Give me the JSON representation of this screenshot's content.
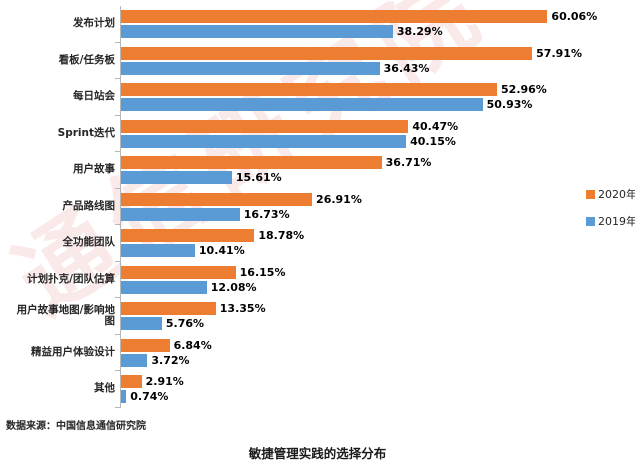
{
  "title": "敏捷管理实践的选择分布",
  "source": "数据来源：中国信息通信研究院",
  "watermark": "通信研究院",
  "legend": [
    {
      "label": "2020年",
      "color": "#ED7D31"
    },
    {
      "label": "2019年",
      "color": "#5B9BD5"
    }
  ],
  "chart_data": {
    "type": "bar",
    "orientation": "horizontal",
    "title": "敏捷管理实践的选择分布",
    "xlabel": "",
    "ylabel": "",
    "xlim": [
      0,
      65
    ],
    "value_suffix": "%",
    "grid": false,
    "legend_position": "right",
    "categories": [
      "发布计划",
      "看板/任务板",
      "每日站会",
      "Sprint迭代",
      "用户故事",
      "产品路线图",
      "全功能团队",
      "计划扑克/团队估算",
      "用户故事地图/影响地图",
      "精益用户体验设计",
      "其他"
    ],
    "series": [
      {
        "name": "2020年",
        "color": "#ED7D31",
        "values": [
          60.06,
          57.91,
          52.96,
          40.47,
          36.71,
          26.91,
          18.78,
          16.15,
          13.35,
          6.84,
          2.91
        ]
      },
      {
        "name": "2019年",
        "color": "#5B9BD5",
        "values": [
          38.29,
          36.43,
          50.93,
          40.15,
          15.61,
          16.73,
          10.41,
          12.08,
          5.76,
          3.72,
          0.74
        ]
      }
    ]
  }
}
